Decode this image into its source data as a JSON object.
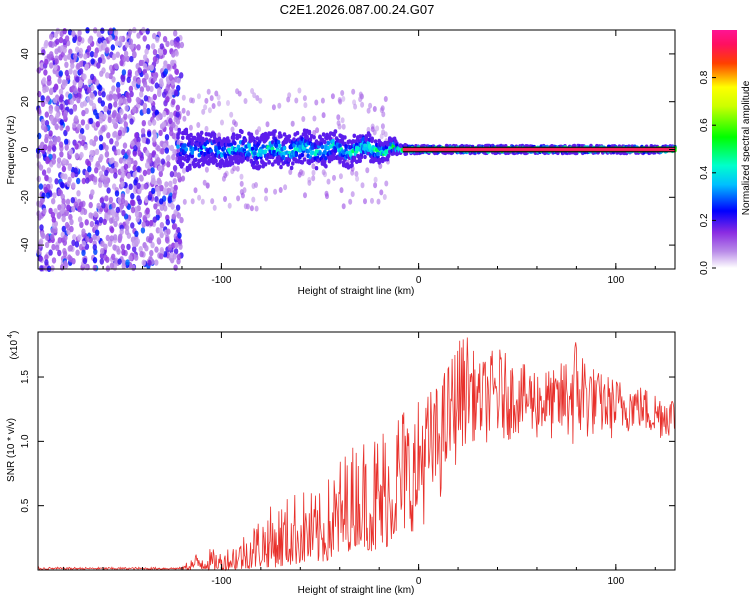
{
  "chart_data": [
    {
      "type": "heatmap",
      "title": "C2E1.2026.087.00.24.G07",
      "xlabel": "Height of straight line (km)",
      "ylabel": "Frequency (Hz)",
      "xlim": [
        -193,
        130
      ],
      "ylim": [
        -50,
        50
      ],
      "xticks": [
        -100,
        0,
        100
      ],
      "yticks": [
        -40,
        -20,
        0,
        20,
        40
      ],
      "xtick_labels": [
        "-100",
        "0",
        "100"
      ],
      "ytick_labels": [
        "-40",
        "-20",
        "0",
        "20",
        "40"
      ],
      "colorbar": {
        "label": "Normalized spectral amplitude",
        "range": [
          0,
          1
        ],
        "ticks": [
          0.0,
          0.2,
          0.4,
          0.6,
          0.8
        ],
        "tick_labels": [
          "0.0",
          "0.2",
          "0.4",
          "0.6",
          "0.8"
        ],
        "colors": [
          "#ffffff",
          "#8a2be2",
          "#0000ff",
          "#00ffff",
          "#00ff00",
          "#ffff00",
          "#ff0000",
          "#ff1493"
        ]
      },
      "description_series": [
        {
          "name": "noise region",
          "x_range": [
            -193,
            -120
          ],
          "freq_spread": 50,
          "amplitude": 0.15
        },
        {
          "name": "signal band",
          "x": [
            -120,
            -100,
            -80,
            -60,
            -40,
            -20,
            -10,
            0,
            20,
            50,
            100,
            130
          ],
          "half_width_hz": [
            8,
            6,
            7,
            7,
            6,
            5,
            2,
            1.5,
            1.5,
            1.5,
            1.5,
            1.5
          ],
          "peak_amplitude": [
            0.35,
            0.4,
            0.45,
            0.45,
            0.45,
            0.5,
            0.6,
            0.85,
            0.85,
            0.85,
            0.85,
            0.85
          ]
        }
      ]
    },
    {
      "type": "line",
      "xlabel": "Height of straight line (km)",
      "ylabel": "SNR (10 * v/v)",
      "scale_label": "(x10",
      "scale_exp": "4",
      "xlim": [
        -193,
        130
      ],
      "ylim": [
        0,
        1.85
      ],
      "xticks": [
        -100,
        0,
        100
      ],
      "yticks": [
        0.5,
        1.0,
        1.5
      ],
      "xtick_labels": [
        "-100",
        "0",
        "100"
      ],
      "ytick_labels": [
        "0.5",
        "1.0",
        "1.5"
      ],
      "series": [
        {
          "name": "SNR",
          "color": "#e8302b",
          "envelope_x": [
            -193,
            -120,
            -110,
            -100,
            -90,
            -80,
            -70,
            -60,
            -50,
            -40,
            -30,
            -20,
            -10,
            0,
            10,
            20,
            25,
            30,
            40,
            50,
            60,
            70,
            80,
            90,
            100,
            110,
            120,
            130
          ],
          "envelope_max": [
            0.03,
            0.03,
            0.18,
            0.15,
            0.28,
            0.45,
            0.55,
            0.65,
            0.6,
            0.9,
            1.05,
            1.15,
            1.35,
            1.35,
            1.45,
            1.8,
            1.85,
            1.6,
            1.75,
            1.6,
            1.6,
            1.55,
            1.85,
            1.55,
            1.5,
            1.45,
            1.4,
            1.35
          ],
          "envelope_min": [
            0.0,
            0.0,
            0.0,
            0.0,
            0.0,
            0.02,
            0.02,
            0.05,
            0.05,
            0.1,
            0.2,
            0.1,
            0.3,
            0.3,
            0.5,
            0.85,
            1.0,
            1.0,
            0.95,
            1.05,
            1.0,
            1.0,
            0.9,
            1.05,
            1.0,
            1.1,
            1.0,
            1.05
          ]
        }
      ]
    }
  ]
}
